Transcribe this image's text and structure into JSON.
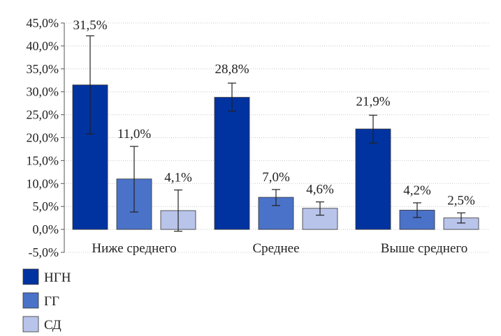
{
  "chart_data": {
    "type": "bar",
    "categories": [
      "Ниже среднего",
      "Среднее",
      "Выше среднего"
    ],
    "series": [
      {
        "name": "НГН",
        "color": "#0033a0",
        "values": [
          31.5,
          28.8,
          21.9
        ],
        "labels": [
          "31,5%",
          "28,8%",
          "21,9%"
        ],
        "error_low": [
          20.8,
          25.8,
          18.8
        ],
        "error_high": [
          42.2,
          31.9,
          24.9
        ]
      },
      {
        "name": "ГГ",
        "color": "#4a72c8",
        "values": [
          11.0,
          7.0,
          4.2
        ],
        "labels": [
          "11,0%",
          "7,0%",
          "4,2%"
        ],
        "error_low": [
          3.8,
          5.2,
          2.6
        ],
        "error_high": [
          18.1,
          8.7,
          5.8
        ]
      },
      {
        "name": "СД",
        "color": "#b8c4ea",
        "values": [
          4.1,
          4.6,
          2.5
        ],
        "labels": [
          "4,1%",
          "4,6%",
          "2,5%"
        ],
        "error_low": [
          -0.4,
          3.1,
          1.4
        ],
        "error_high": [
          8.6,
          6.0,
          3.6
        ]
      }
    ],
    "yticks": [
      -5,
      0,
      5,
      10,
      15,
      20,
      25,
      30,
      35,
      40,
      45
    ],
    "ytick_labels": [
      "-5,0%",
      "0,0%",
      "5,0%",
      "10,0%",
      "15,0%",
      "20,0%",
      "25,0%",
      "30,0%",
      "35,0%",
      "40,0%",
      "45,0%"
    ],
    "ylim": [
      -5,
      45
    ],
    "grid": true,
    "legend_position": "bottom-left",
    "title": "",
    "xlabel": "",
    "ylabel": ""
  }
}
